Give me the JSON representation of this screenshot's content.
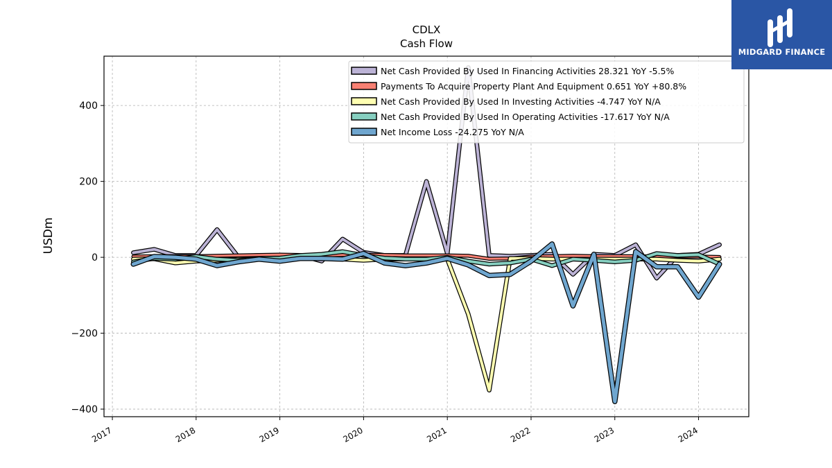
{
  "logo": {
    "text": "MIDGARD FINANCE",
    "color": "#2a56a5"
  },
  "chart_data": {
    "type": "line",
    "title": "CDLX",
    "subtitle": "Cash Flow",
    "xlabel": "",
    "ylabel": "USDm",
    "xlim": [
      2016.9,
      2024.6
    ],
    "ylim": [
      -420,
      530
    ],
    "yticks": [
      -400,
      -200,
      0,
      200,
      400
    ],
    "ytick_labels": [
      "−400",
      "−200",
      "0",
      "200",
      "400"
    ],
    "xticks": [
      2017,
      2018,
      2019,
      2020,
      2021,
      2022,
      2023,
      2024
    ],
    "xtick_labels": [
      "2017",
      "2018",
      "2019",
      "2020",
      "2021",
      "2022",
      "2023",
      "2024"
    ],
    "grid": true,
    "legend_position": "top-right",
    "x": [
      2017.25,
      2017.5,
      2017.75,
      2018.0,
      2018.25,
      2018.5,
      2018.75,
      2019.0,
      2019.25,
      2019.5,
      2019.75,
      2020.0,
      2020.25,
      2020.5,
      2020.75,
      2021.0,
      2021.25,
      2021.5,
      2021.75,
      2022.0,
      2022.25,
      2022.5,
      2022.75,
      2023.0,
      2023.25,
      2023.5,
      2023.75,
      2024.0,
      2024.25
    ],
    "series": [
      {
        "name": "Net Cash Provided By Used In Financing Activities",
        "legend_label": "Net Cash Provided By Used In Financing Activities  28.321 YoY -5.5%",
        "color": "#bcb3d6",
        "width": 4,
        "values": [
          12,
          21,
          5,
          5,
          73,
          2,
          5,
          5,
          5,
          -10,
          48,
          13,
          5,
          5,
          200,
          10,
          500,
          5,
          3,
          5,
          8,
          -45,
          8,
          5,
          33,
          -55,
          5,
          8,
          33
        ]
      },
      {
        "name": "Payments To Acquire Property Plant And Equipment",
        "legend_label": "Payments To Acquire Property Plant And Equipment  0.651 YoY +80.8%",
        "color": "#f88073",
        "width": 3,
        "values": [
          2,
          3,
          3,
          3,
          4,
          5,
          6,
          7,
          6,
          5,
          6,
          7,
          6,
          5,
          5,
          5,
          4,
          -4,
          -3,
          2,
          3,
          4,
          3,
          3,
          3,
          2,
          2,
          2,
          1
        ]
      },
      {
        "name": "Net Cash Provided By Used In Investing Activities",
        "legend_label": "Net Cash Provided By Used In Investing Activities  -4.747 YoY N/A",
        "color": "#ffffb2",
        "width": 4,
        "values": [
          -5,
          -4,
          -15,
          -10,
          -8,
          -5,
          -5,
          -3,
          -3,
          -3,
          -5,
          -8,
          -5,
          -5,
          -5,
          -5,
          -150,
          -350,
          -3,
          -3,
          -5,
          -5,
          -5,
          -5,
          -5,
          -5,
          -8,
          -10,
          -5
        ]
      },
      {
        "name": "Net Cash Provided By Used In Operating Activities",
        "legend_label": "Net Cash Provided By Used In Operating Activities  -17.617 YoY N/A",
        "color": "#86cfc0",
        "width": 4,
        "values": [
          -12,
          -3,
          -5,
          2,
          -5,
          -8,
          -3,
          -2,
          5,
          8,
          15,
          5,
          -2,
          -5,
          -5,
          0,
          -10,
          -18,
          -15,
          -5,
          -22,
          -5,
          -8,
          -12,
          -8,
          10,
          5,
          7,
          -18
        ]
      },
      {
        "name": "Net Income Loss",
        "legend_label": "Net Income Loss  -24.275 YoY N/A",
        "color": "#6fa6cf",
        "width": 5,
        "values": [
          -18,
          2,
          0,
          -5,
          -22,
          -12,
          -5,
          -10,
          -3,
          -3,
          -5,
          10,
          -15,
          -22,
          -15,
          -3,
          -20,
          -48,
          -45,
          -10,
          35,
          -128,
          8,
          -380,
          15,
          -25,
          -25,
          -105,
          -18
        ]
      }
    ]
  }
}
